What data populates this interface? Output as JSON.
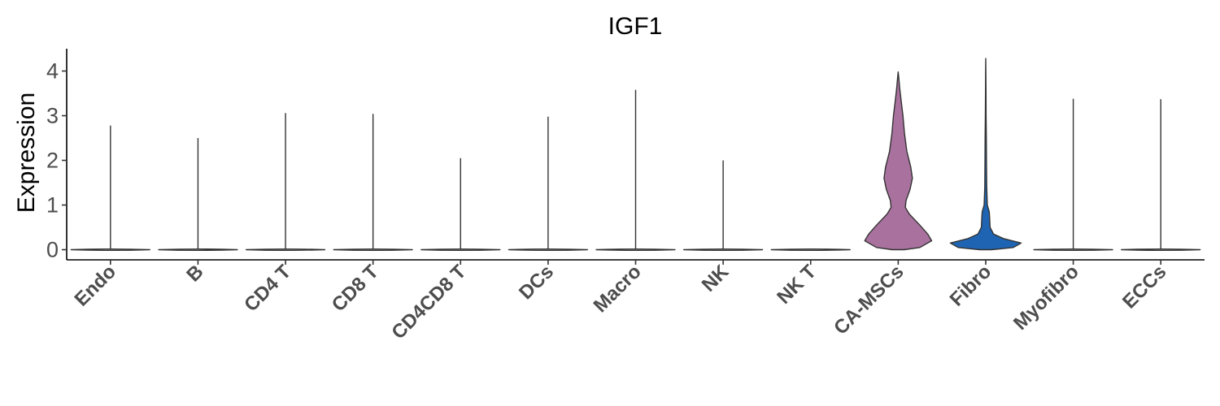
{
  "chart_data": {
    "type": "violin",
    "title": "IGF1",
    "xlabel": "",
    "ylabel": "Expression",
    "ylim": [
      0,
      4.5
    ],
    "yticks": [
      "0",
      "1",
      "2",
      "3",
      "4"
    ],
    "grid": false,
    "legend": "none",
    "categories": [
      "Endo",
      "B",
      "CD4 T",
      "CD8 T",
      "CD4CD8 T",
      "DCs",
      "Macro",
      "NK",
      "NK T",
      "CA-MSCs",
      "Fibro",
      "Myofibro",
      "ECCs"
    ],
    "max_expression": [
      2.78,
      2.5,
      3.06,
      3.04,
      2.05,
      2.98,
      3.58,
      2.0,
      0.0,
      3.98,
      4.28,
      3.38,
      3.37
    ],
    "colors": {
      "CA-MSCs": "#a8719e",
      "Fibro": "#1f64b2",
      "other": "#ffffff"
    }
  }
}
